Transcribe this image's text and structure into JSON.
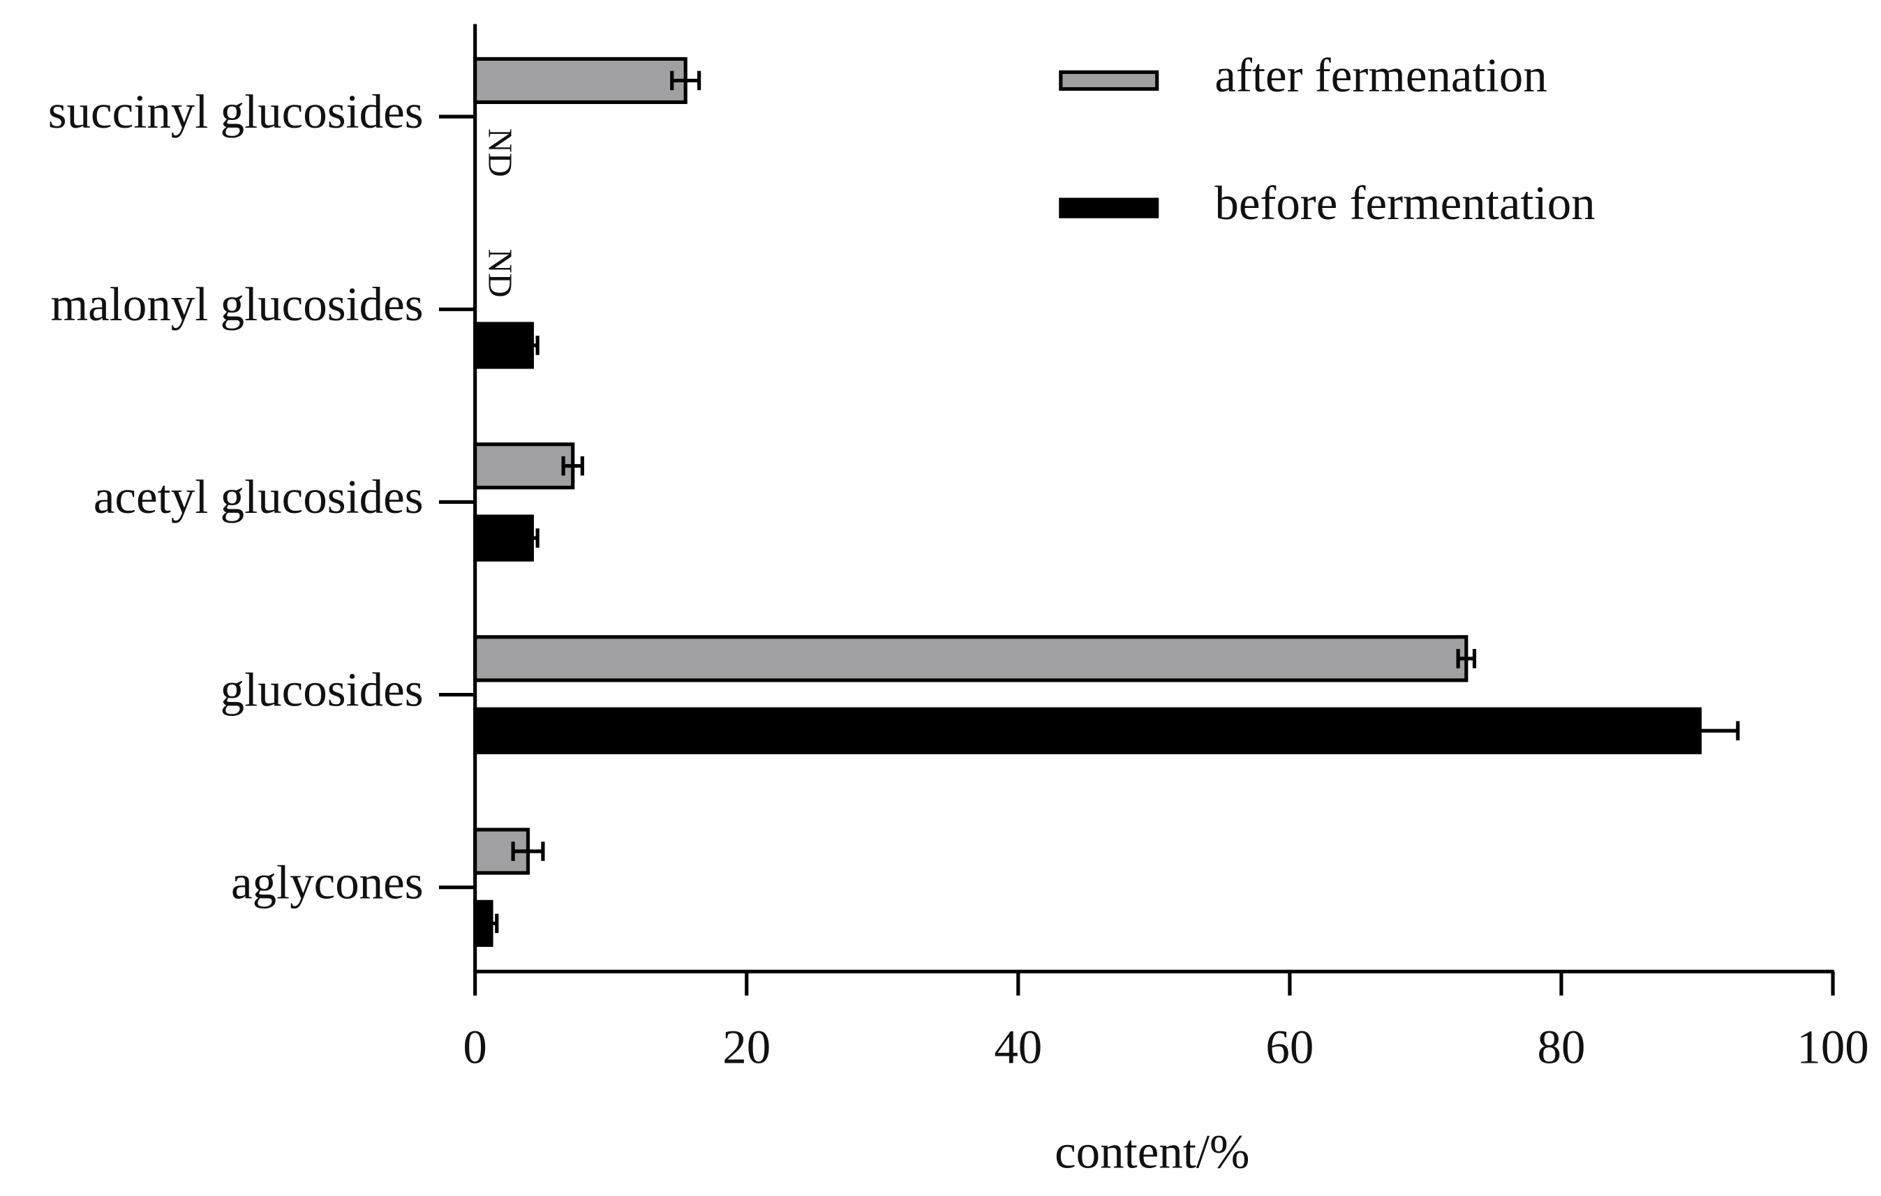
{
  "chart_data": {
    "type": "hbar",
    "xlabel": "content/%",
    "categories": [
      "succinyl glucosides",
      "malonyl glucosides",
      "acetyl glucosides",
      "glucosides",
      "aglycones"
    ],
    "series": [
      {
        "name": "after fermenation",
        "color": "#a0a0a2",
        "values": [
          15.5,
          null,
          7.2,
          73,
          3.9
        ],
        "errors": [
          1,
          null,
          0.7,
          0.6,
          1.1
        ],
        "value_labels": [
          null,
          "ND",
          null,
          null,
          null
        ]
      },
      {
        "name": "before fermentation",
        "color": "#000000",
        "values": [
          null,
          4.2,
          4.2,
          90.2,
          1.2
        ],
        "errors": [
          null,
          0.4,
          0.4,
          2.8,
          0.4
        ],
        "value_labels": [
          "ND",
          null,
          null,
          null,
          null
        ]
      }
    ],
    "xlim": [
      0,
      100
    ],
    "xticks": [
      0,
      20,
      40,
      60,
      80,
      100
    ]
  }
}
